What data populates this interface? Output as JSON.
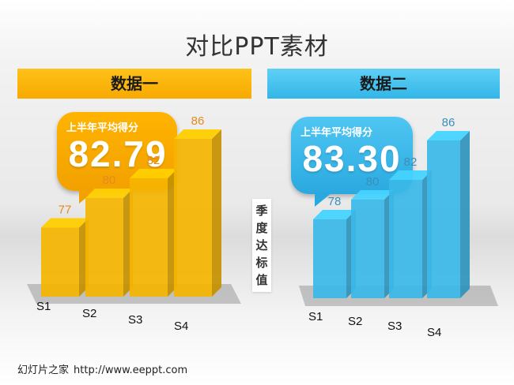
{
  "title": "对比PPT素材",
  "vertical_label": "季\n度\n达\n标\n值",
  "footer": {
    "site_name": "幻灯片之家",
    "url": "http://www.eeppt.com"
  },
  "colors": {
    "yellow": "#f5b400",
    "blue": "#3bb8e8",
    "yellow_text": "#e58a1e",
    "blue_text": "#3a8fb8"
  },
  "panels": [
    {
      "header": "数据一",
      "bubble_label": "上半年平均得分",
      "bubble_value": "82.79"
    },
    {
      "header": "数据二",
      "bubble_label": "上半年平均得分",
      "bubble_value": "83.30"
    }
  ],
  "chart_data": [
    {
      "type": "bar",
      "title": "数据一",
      "categories": [
        "S1",
        "S2",
        "S3",
        "S4"
      ],
      "values": [
        77,
        80,
        82,
        86
      ]
    },
    {
      "type": "bar",
      "title": "数据二",
      "categories": [
        "S1",
        "S2",
        "S3",
        "S4"
      ],
      "values": [
        78,
        80,
        82,
        86
      ]
    }
  ]
}
